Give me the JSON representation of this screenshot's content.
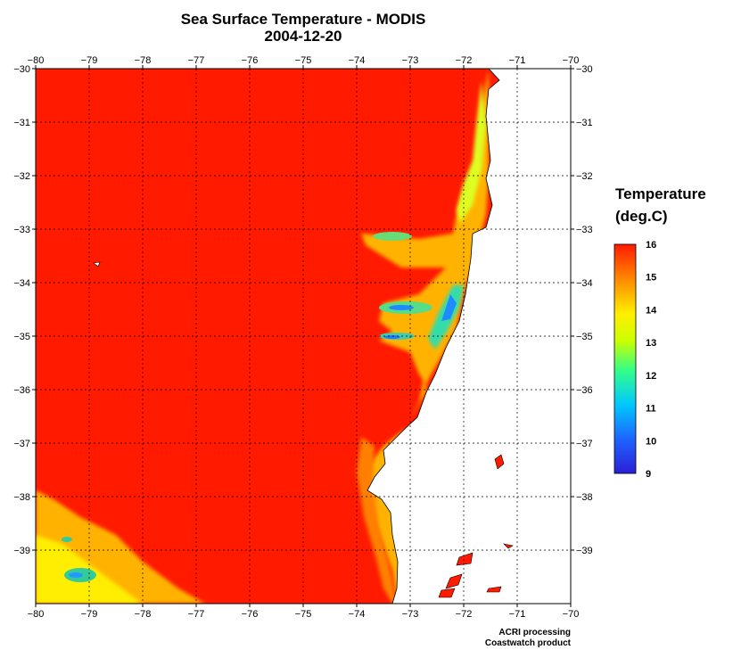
{
  "title": "Sea Surface Temperature - MODIS",
  "subtitle": "2004-12-20",
  "colorbar": {
    "title_line1": "Temperature",
    "title_line2": "(deg.C)",
    "min": 9,
    "max": 16,
    "ticks": [
      "16",
      "15",
      "14",
      "13",
      "12",
      "11",
      "10",
      "9"
    ]
  },
  "axes": {
    "lon_labels": [
      "−80",
      "−79",
      "−78",
      "−77",
      "−76",
      "−75",
      "−74",
      "−73",
      "−72",
      "−71",
      "−70"
    ],
    "lat_labels": [
      "−30",
      "−31",
      "−32",
      "−33",
      "−34",
      "−35",
      "−36",
      "−37",
      "−38",
      "−39"
    ]
  },
  "credits": {
    "line1": "ACRI processing",
    "line2": "Coastwatch product"
  },
  "colors": {
    "warm": "#ff1a00",
    "orange": "#ff8c00",
    "yellow": "#ffff00",
    "green": "#66ff33",
    "cyan": "#00ccff",
    "blue": "#3333ff",
    "land": "#ffffff"
  }
}
